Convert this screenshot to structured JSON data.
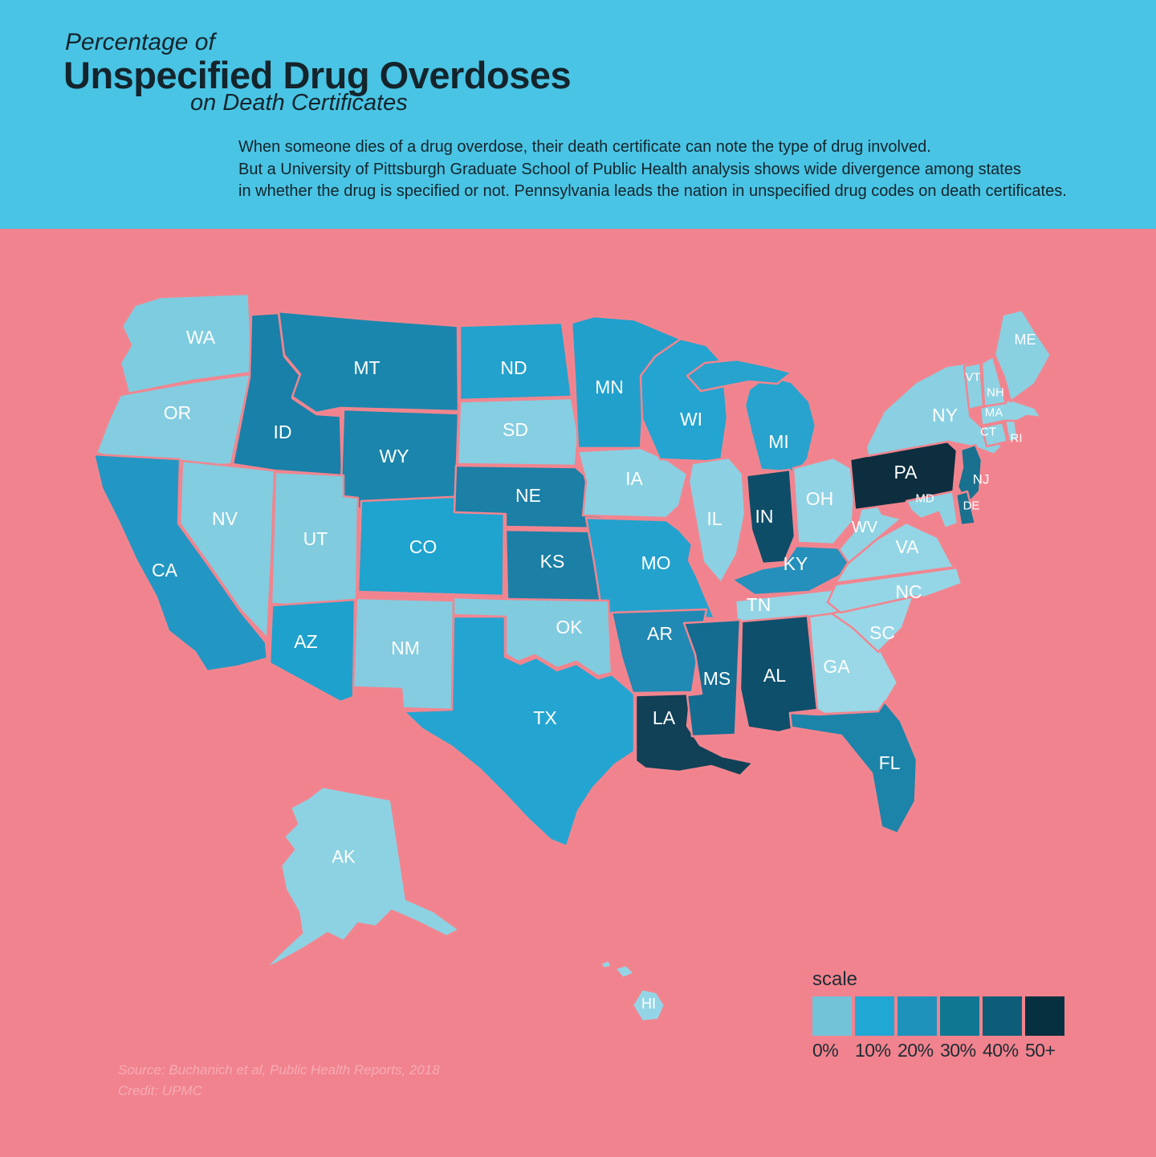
{
  "header": {
    "title_line1": "Percentage of",
    "title_line2": "Unspecified Drug Overdoses",
    "title_line3": "on Death Certificates",
    "description_lines": [
      "When someone dies of a drug overdose, their death certificate can note the type of drug involved.",
      "But a University of Pittsburgh Graduate School of Public Health analysis shows wide divergence among states",
      "in whether the drug is specified or not. Pennsylvania leads the nation in unspecified drug codes on death certificates."
    ]
  },
  "colors": {
    "header_bg": "#49c4e4",
    "map_bg": "#f1838e",
    "state_border": "#f1858f",
    "state_label": "#ffffff",
    "title_text": "#14242c",
    "legend_text": "#1c2b33",
    "source_text": "#f6abb3"
  },
  "legend": {
    "title": "scale",
    "items": [
      {
        "label": "0%",
        "color": "#72c3d8"
      },
      {
        "label": "10%",
        "color": "#21a7d3"
      },
      {
        "label": "20%",
        "color": "#1e92bb"
      },
      {
        "label": "30%",
        "color": "#107793"
      },
      {
        "label": "40%",
        "color": "#0c5d77"
      },
      {
        "label": "50+",
        "color": "#06303f"
      }
    ]
  },
  "source": {
    "line1": "Source: Buchanich et al, Public Health Reports, 2018",
    "line2": "Credit: UPMC"
  },
  "chart_data": {
    "type": "heatmap",
    "subtype": "us-choropleth",
    "title": "Percentage of Unspecified Drug Overdoses on Death Certificates",
    "legend_position": "bottom-right",
    "scale_buckets": [
      "0%",
      "10%",
      "20%",
      "30%",
      "40%",
      "50+"
    ],
    "states": [
      {
        "code": "WA",
        "bucket": "0%",
        "fill": "#7eccdf"
      },
      {
        "code": "OR",
        "bucket": "0%",
        "fill": "#84cde0"
      },
      {
        "code": "CA",
        "bucket": "20%",
        "fill": "#2297c3"
      },
      {
        "code": "NV",
        "bucket": "0%",
        "fill": "#83cde0"
      },
      {
        "code": "ID",
        "bucket": "30%",
        "fill": "#1880a9"
      },
      {
        "code": "MT",
        "bucket": "30%",
        "fill": "#1b86ad"
      },
      {
        "code": "WY",
        "bucket": "30%",
        "fill": "#1b85ac"
      },
      {
        "code": "UT",
        "bucket": "0%",
        "fill": "#80cbde"
      },
      {
        "code": "CO",
        "bucket": "10%",
        "fill": "#1fa3cf"
      },
      {
        "code": "AZ",
        "bucket": "10%",
        "fill": "#1ea1cd"
      },
      {
        "code": "NM",
        "bucket": "0%",
        "fill": "#85cce0"
      },
      {
        "code": "ND",
        "bucket": "10%",
        "fill": "#22a2cd"
      },
      {
        "code": "SD",
        "bucket": "0%",
        "fill": "#86cee1"
      },
      {
        "code": "NE",
        "bucket": "30%",
        "fill": "#1b7fa6"
      },
      {
        "code": "KS",
        "bucket": "30%",
        "fill": "#1c7fa6"
      },
      {
        "code": "MN",
        "bucket": "10%",
        "fill": "#21a0cc"
      },
      {
        "code": "IA",
        "bucket": "0%",
        "fill": "#89d0e2"
      },
      {
        "code": "MO",
        "bucket": "10%",
        "fill": "#24a2ce"
      },
      {
        "code": "WI",
        "bucket": "10%",
        "fill": "#24a4d0"
      },
      {
        "code": "MI",
        "bucket": "10%",
        "fill": "#27a3ce"
      },
      {
        "code": "IL",
        "bucket": "0%",
        "fill": "#8cd1e3"
      },
      {
        "code": "IN",
        "bucket": "40%",
        "fill": "#0e4d68"
      },
      {
        "code": "OH",
        "bucket": "0%",
        "fill": "#90d3e4"
      },
      {
        "code": "KY",
        "bucket": "20%",
        "fill": "#2490bb"
      },
      {
        "code": "TN",
        "bucket": "0%",
        "fill": "#93d5e5"
      },
      {
        "code": "OK",
        "bucket": "0%",
        "fill": "#81cbdf"
      },
      {
        "code": "TX",
        "bucket": "10%",
        "fill": "#24a5d1"
      },
      {
        "code": "AR",
        "bucket": "20%",
        "fill": "#2089b4"
      },
      {
        "code": "LA",
        "bucket": "40%",
        "fill": "#104156"
      },
      {
        "code": "MS",
        "bucket": "30%",
        "fill": "#146c90"
      },
      {
        "code": "AL",
        "bucket": "40%",
        "fill": "#0e4f6b"
      },
      {
        "code": "GA",
        "bucket": "0%",
        "fill": "#9ad8e7"
      },
      {
        "code": "FL",
        "bucket": "30%",
        "fill": "#1c84a9"
      },
      {
        "code": "SC",
        "bucket": "0%",
        "fill": "#98d7e7"
      },
      {
        "code": "NC",
        "bucket": "0%",
        "fill": "#95d6e6"
      },
      {
        "code": "VA",
        "bucket": "0%",
        "fill": "#93d5e5"
      },
      {
        "code": "WV",
        "bucket": "0%",
        "fill": "#90d3e4"
      },
      {
        "code": "PA",
        "bucket": "50+",
        "fill": "#0c2e3f"
      },
      {
        "code": "NY",
        "bucket": "0%",
        "fill": "#8ad0e2"
      },
      {
        "code": "NJ",
        "bucket": "30%",
        "fill": "#18718f"
      },
      {
        "code": "DE",
        "bucket": "30%",
        "fill": "#17718f"
      },
      {
        "code": "MD",
        "bucket": "0%",
        "fill": "#8dd2e3"
      },
      {
        "code": "CT",
        "bucket": "0%",
        "fill": "#8ed2e3"
      },
      {
        "code": "RI",
        "bucket": "0%",
        "fill": "#92d4e5"
      },
      {
        "code": "MA",
        "bucket": "0%",
        "fill": "#8fd3e4"
      },
      {
        "code": "VT",
        "bucket": "0%",
        "fill": "#8bd1e2"
      },
      {
        "code": "NH",
        "bucket": "0%",
        "fill": "#8dd2e3"
      },
      {
        "code": "ME",
        "bucket": "0%",
        "fill": "#89d0e1"
      },
      {
        "code": "AK",
        "bucket": "0%",
        "fill": "#8dd2e3"
      },
      {
        "code": "HI",
        "bucket": "0%",
        "fill": "#93d5e6"
      }
    ]
  }
}
